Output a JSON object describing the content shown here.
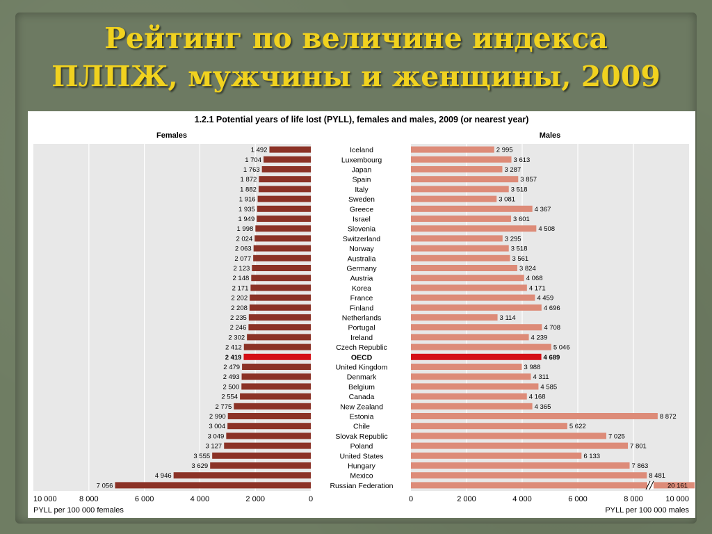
{
  "slide": {
    "title_line1": "Рейтинг по величине  индекса",
    "title_line2": "ПЛПЖ, мужчины и женщины, 2009"
  },
  "chart_data": {
    "type": "bar",
    "title": "1.2.1  Potential years of life lost (PYLL), females and males, 2009 (or nearest year)",
    "panels": {
      "left": {
        "name": "Females",
        "xlabel": "PYLL per 100 000 females",
        "xlim": [
          0,
          10000
        ],
        "ticks": [
          "10 000",
          "8 000",
          "6 000",
          "4 000",
          "2 000",
          "0"
        ]
      },
      "right": {
        "name": "Males",
        "xlabel": "PYLL per 100 000 males",
        "xlim": [
          0,
          10000
        ],
        "ticks": [
          "0",
          "2 000",
          "4 000",
          "6 000",
          "8 000",
          "10 000"
        ]
      }
    },
    "categories": [
      "Iceland",
      "Luxembourg",
      "Japan",
      "Spain",
      "Italy",
      "Sweden",
      "Greece",
      "Israel",
      "Slovenia",
      "Switzerland",
      "Norway",
      "Australia",
      "Germany",
      "Austria",
      "Korea",
      "France",
      "Finland",
      "Netherlands",
      "Portugal",
      "Ireland",
      "Czech Republic",
      "OECD",
      "United Kingdom",
      "Denmark",
      "Belgium",
      "Canada",
      "New Zealand",
      "Estonia",
      "Chile",
      "Slovak Republic",
      "Poland",
      "United States",
      "Hungary",
      "Mexico",
      "Russian Federation"
    ],
    "highlight_category": "OECD",
    "series": [
      {
        "name": "Females",
        "values": [
          1492,
          1704,
          1763,
          1872,
          1882,
          1916,
          1935,
          1949,
          1998,
          2024,
          2063,
          2077,
          2123,
          2148,
          2171,
          2202,
          2208,
          2235,
          2246,
          2302,
          2412,
          2419,
          2479,
          2493,
          2500,
          2554,
          2775,
          2990,
          3004,
          3049,
          3127,
          3555,
          3629,
          4946,
          7056
        ],
        "labels": [
          "1 492",
          "1 704",
          "1 763",
          "1 872",
          "1 882",
          "1 916",
          "1 935",
          "1 949",
          "1 998",
          "2 024",
          "2 063",
          "2 077",
          "2 123",
          "2 148",
          "2 171",
          "2 202",
          "2 208",
          "2 235",
          "2 246",
          "2 302",
          "2 412",
          "2 419",
          "2 479",
          "2 493",
          "2 500",
          "2 554",
          "2 775",
          "2 990",
          "3 004",
          "3 049",
          "3 127",
          "3 555",
          "3 629",
          "4 946",
          "7 056"
        ]
      },
      {
        "name": "Males",
        "values": [
          2995,
          3613,
          3287,
          3857,
          3518,
          3081,
          4367,
          3601,
          4508,
          3295,
          3518,
          3561,
          3824,
          4068,
          4171,
          4459,
          4696,
          3114,
          4708,
          4239,
          5046,
          4689,
          3988,
          4311,
          4585,
          4168,
          4365,
          8872,
          5622,
          7025,
          7801,
          6133,
          7863,
          8481,
          20161
        ],
        "labels": [
          "2 995",
          "3 613",
          "3 287",
          "3 857",
          "3 518",
          "3 081",
          "4 367",
          "3 601",
          "4 508",
          "3 295",
          "3 518",
          "3 561",
          "3 824",
          "4 068",
          "4 171",
          "4 459",
          "4 696",
          "3 114",
          "4 708",
          "4 239",
          "5 046",
          "4 689",
          "3 988",
          "4 311",
          "4 585",
          "4 168",
          "4 365",
          "8 872",
          "5 622",
          "7 025",
          "7 801",
          "6 133",
          "7 863",
          "8 481",
          "20 161"
        ],
        "axis_break": "//"
      }
    ],
    "colors": {
      "females_bar": "#8b3226",
      "males_bar": "#dd8b78",
      "highlight_bar": "#d40f16",
      "plot_background": "#e8e8e8",
      "gridline": "#ffffff",
      "title_text": "#000000",
      "slide_title": "#f1d21f"
    },
    "grid": true
  }
}
